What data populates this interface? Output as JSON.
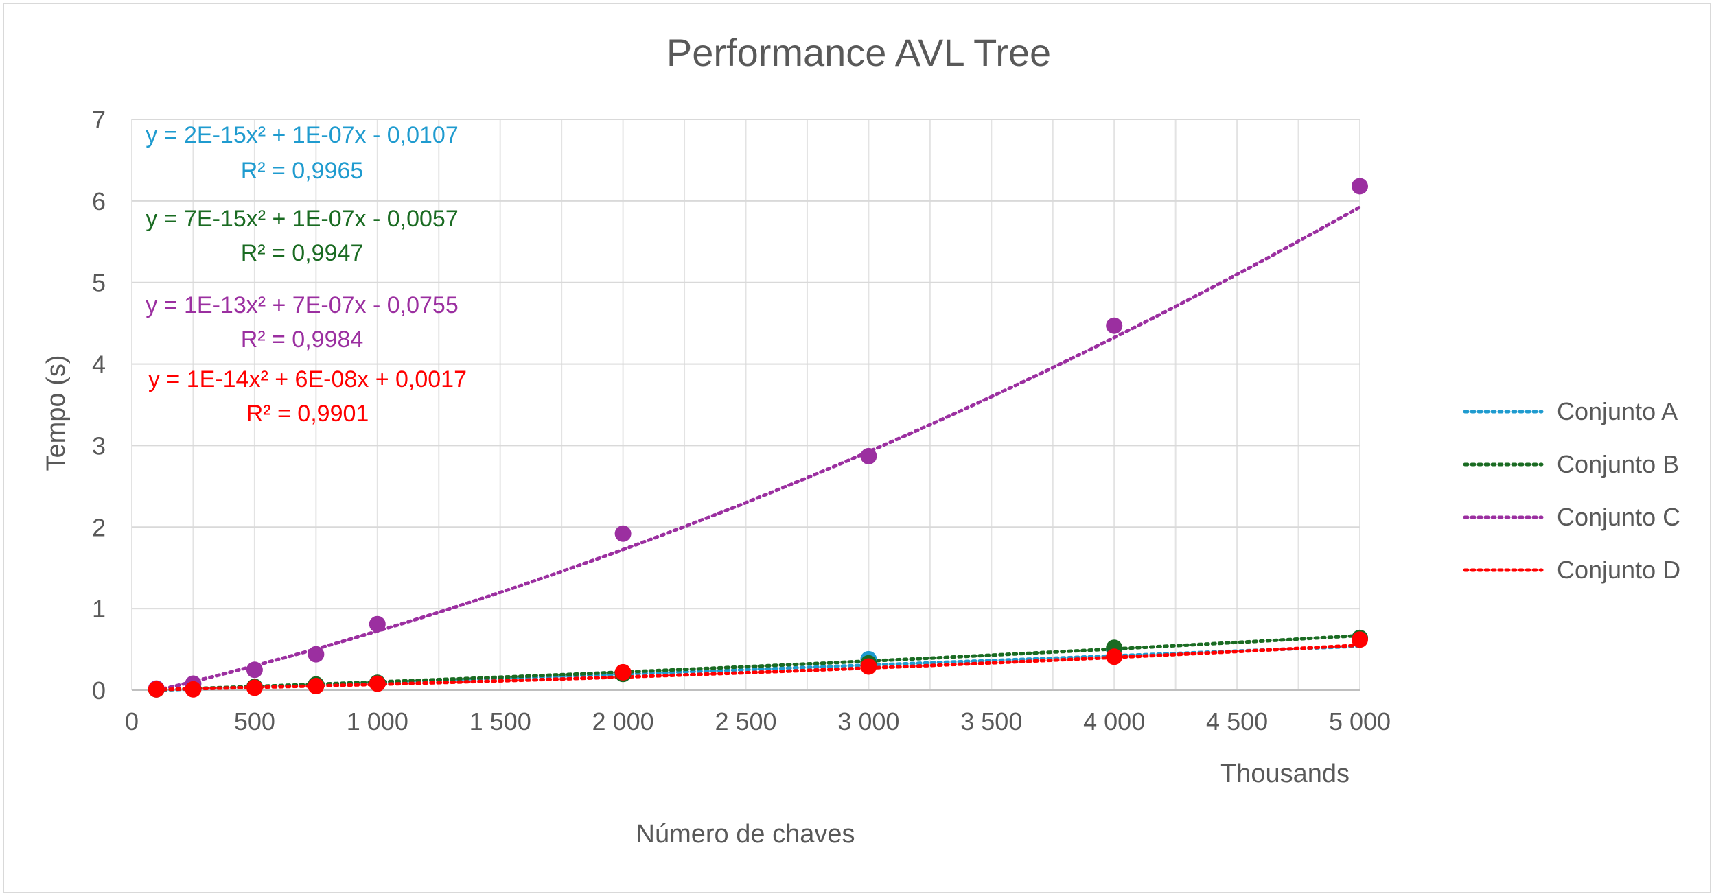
{
  "chart_data": {
    "type": "scatter",
    "title": "Performance AVL Tree",
    "xlabel": "Número de chaves",
    "ylabel": "Tempo (s)",
    "x_units_label": "Thousands",
    "xlim": [
      0,
      5000000
    ],
    "ylim": [
      0,
      7
    ],
    "x_ticks": [
      0,
      500000,
      1000000,
      1500000,
      2000000,
      2500000,
      3000000,
      3500000,
      4000000,
      4500000,
      5000000
    ],
    "x_tick_labels": [
      "0",
      "500",
      "1 000",
      "1 500",
      "2 000",
      "2 500",
      "3 000",
      "3 500",
      "4 000",
      "4 500",
      "5 000"
    ],
    "y_ticks": [
      0,
      1,
      2,
      3,
      4,
      5,
      6,
      7
    ],
    "y_tick_labels": [
      "0",
      "1",
      "2",
      "3",
      "4",
      "5",
      "6",
      "7"
    ],
    "grid": true,
    "legend_position": "right",
    "series": [
      {
        "name": "Conjunto A",
        "color": "#1f9bcf",
        "x": [
          100000,
          250000,
          500000,
          750000,
          1000000,
          2000000,
          3000000,
          4000000,
          5000000
        ],
        "y": [
          0.01,
          0.02,
          0.04,
          0.06,
          0.09,
          0.21,
          0.38,
          0.5,
          0.64
        ],
        "trendline": {
          "a": 2e-15,
          "b": 1e-07,
          "c": -0.0107
        },
        "equation": "y = 2E-15x² + 1E-07x - 0,0107",
        "r2": "R² = 0,9965"
      },
      {
        "name": "Conjunto B",
        "color": "#1a6b22",
        "x": [
          100000,
          250000,
          500000,
          750000,
          1000000,
          2000000,
          3000000,
          4000000,
          5000000
        ],
        "y": [
          0.01,
          0.02,
          0.04,
          0.07,
          0.09,
          0.2,
          0.33,
          0.52,
          0.64
        ],
        "trendline": {
          "a": 7e-15,
          "b": 1e-07,
          "c": -0.0057
        },
        "equation": "y = 7E-15x² + 1E-07x - 0,0057",
        "r2": "R² = 0,9947"
      },
      {
        "name": "Conjunto C",
        "color": "#9b2fa0",
        "x": [
          100000,
          250000,
          500000,
          750000,
          1000000,
          2000000,
          3000000,
          4000000,
          5000000
        ],
        "y": [
          0.02,
          0.08,
          0.25,
          0.44,
          0.81,
          1.92,
          2.87,
          4.47,
          6.18
        ],
        "trendline": {
          "a": 1e-13,
          "b": 7e-07,
          "c": -0.0755
        },
        "equation": "y = 1E-13x² + 7E-07x - 0,0755",
        "r2": "R² = 0,9984"
      },
      {
        "name": "Conjunto D",
        "color": "#ff0000",
        "x": [
          100000,
          250000,
          500000,
          750000,
          1000000,
          2000000,
          3000000,
          4000000,
          5000000
        ],
        "y": [
          0.01,
          0.01,
          0.03,
          0.05,
          0.08,
          0.22,
          0.29,
          0.41,
          0.62
        ],
        "trendline": {
          "a": 1e-14,
          "b": 6e-08,
          "c": 0.0017
        },
        "equation": "y = 1E-14x² + 6E-08x + 0,0017",
        "r2": "R² = 0,9901"
      }
    ]
  }
}
